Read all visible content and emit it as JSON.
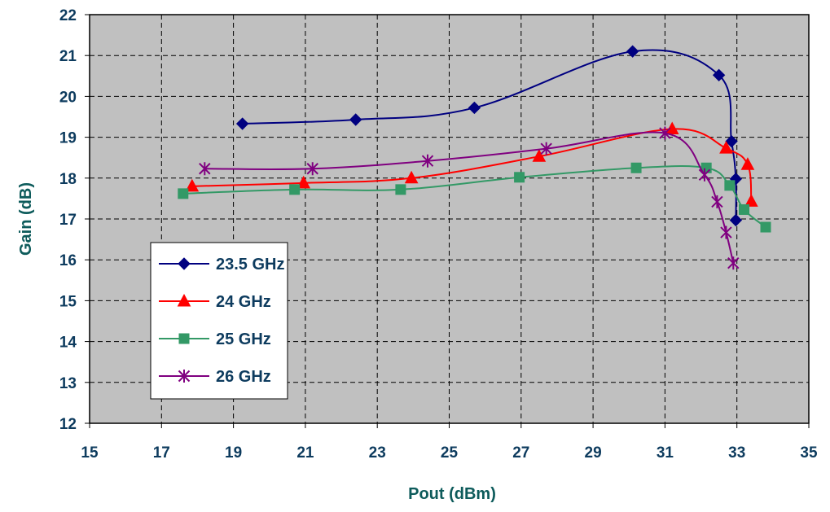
{
  "chart_data": {
    "type": "line",
    "xlabel": "Pout (dBm)",
    "ylabel": "Gain (dB)",
    "xlim": [
      15,
      35
    ],
    "ylim": [
      12,
      22
    ],
    "xticks": [
      15,
      17,
      19,
      21,
      23,
      25,
      27,
      29,
      31,
      33,
      35
    ],
    "yticks": [
      12,
      13,
      14,
      15,
      16,
      17,
      18,
      19,
      20,
      21,
      22
    ],
    "grid": true,
    "legend_position": "lower-left",
    "plot_background": "#c0c0c0",
    "series": [
      {
        "name": "23.5 GHz",
        "color": "#000080",
        "marker": "diamond",
        "x": [
          19.25,
          22.4,
          25.7,
          30.1,
          32.5,
          32.85,
          32.97,
          32.97
        ],
        "y": [
          19.33,
          19.43,
          19.72,
          21.1,
          20.52,
          18.9,
          17.98,
          16.97
        ]
      },
      {
        "name": "24 GHz",
        "color": "#ff0000",
        "marker": "triangle",
        "x": [
          17.85,
          20.95,
          23.95,
          27.5,
          31.2,
          32.7,
          33.3,
          33.4
        ],
        "y": [
          17.8,
          17.88,
          18.0,
          18.53,
          19.2,
          18.73,
          18.33,
          17.43
        ]
      },
      {
        "name": "25 GHz",
        "color": "#339966",
        "marker": "square",
        "x": [
          17.6,
          20.7,
          23.65,
          26.95,
          30.2,
          32.15,
          32.8,
          33.2,
          33.8
        ],
        "y": [
          17.62,
          17.72,
          17.72,
          18.02,
          18.25,
          18.25,
          17.82,
          17.23,
          16.8
        ]
      },
      {
        "name": "26 GHz",
        "color": "#800080",
        "marker": "star",
        "x": [
          18.2,
          21.2,
          24.4,
          27.7,
          31.0,
          32.1,
          32.45,
          32.7,
          32.9
        ],
        "y": [
          18.23,
          18.23,
          18.42,
          18.72,
          19.1,
          18.08,
          17.42,
          16.67,
          15.92
        ]
      }
    ]
  }
}
